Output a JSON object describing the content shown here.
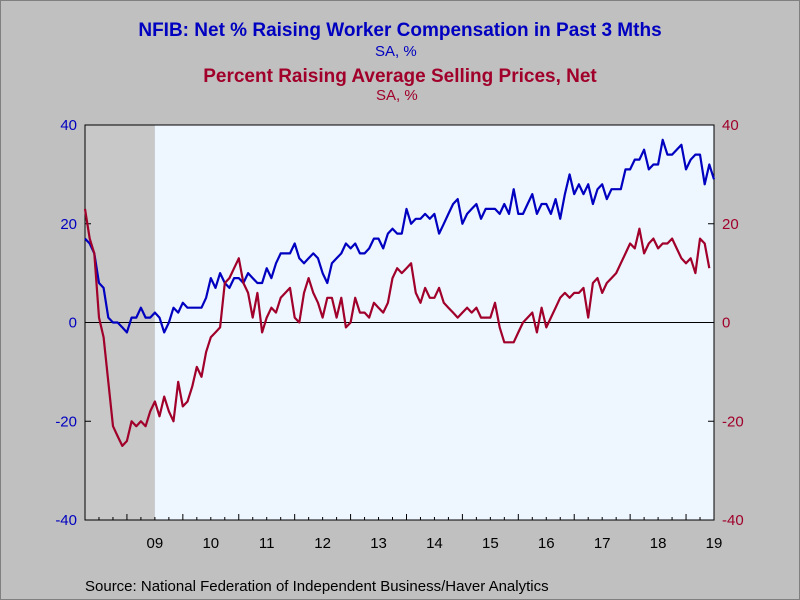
{
  "chart_data": {
    "type": "line",
    "title": "NFIB: Net % Raising Worker Compensation in Past 3 Mths",
    "subtitle": "SA, %",
    "title2": "Percent Raising Average Selling Prices, Net",
    "subtitle2": "SA, %",
    "source": "Source:  National Federation of Independent Business/Haver Analytics",
    "x_tick_labels": [
      "09",
      "10",
      "11",
      "12",
      "13",
      "14",
      "15",
      "16",
      "17",
      "18",
      "19"
    ],
    "y_left": {
      "range": [
        -40,
        40
      ],
      "ticks": [
        -40,
        -20,
        0,
        20,
        40
      ],
      "tick_labels": [
        "-40",
        "-20",
        "0",
        "20",
        "40"
      ]
    },
    "y_right": {
      "range": [
        -40,
        40
      ],
      "ticks": [
        -40,
        -20,
        0,
        20,
        40
      ],
      "tick_labels": [
        "-40",
        "-20",
        "0",
        "20",
        "40"
      ]
    },
    "x_range": [
      2008.25,
      2019.5
    ],
    "recession_shading": [
      2008.25,
      2009.5
    ],
    "grid": false,
    "colors": {
      "compensation": "#0000c0",
      "prices": "#a0002a",
      "plot_bg": "#eef6ff",
      "recession": "#c8c8c8",
      "left_axis_text": "#0000c0",
      "right_axis_text": "#a0002a"
    },
    "series": [
      {
        "key": "compensation",
        "start": 2008.25,
        "step": 0.083333,
        "values": [
          17,
          16,
          14,
          8,
          7,
          1,
          0,
          0,
          -1,
          -2,
          1,
          1,
          3,
          1,
          1,
          2,
          1,
          -2,
          0,
          3,
          2,
          4,
          3,
          3,
          3,
          3,
          5,
          9,
          7,
          10,
          8,
          7,
          9,
          9,
          8,
          10,
          9,
          8,
          8,
          11,
          9,
          12,
          14,
          14,
          14,
          16,
          13,
          12,
          13,
          14,
          13,
          10,
          8,
          12,
          13,
          14,
          16,
          15,
          16,
          14,
          14,
          15,
          17,
          17,
          15,
          18,
          19,
          18,
          18,
          23,
          20,
          21,
          21,
          22,
          21,
          22,
          18,
          20,
          22,
          24,
          25,
          20,
          22,
          23,
          24,
          21,
          23,
          23,
          23,
          22,
          24,
          22,
          27,
          22,
          22,
          24,
          26,
          22,
          24,
          24,
          22,
          25,
          21,
          26,
          30,
          26,
          28,
          26,
          28,
          24,
          27,
          28,
          25,
          27,
          27,
          27,
          31,
          31,
          33,
          33,
          35,
          31,
          32,
          32,
          37,
          34,
          34,
          35,
          36,
          31,
          33,
          34,
          34,
          28,
          32,
          29
        ]
      },
      {
        "key": "prices",
        "start": 2008.25,
        "step": 0.083333,
        "values": [
          23,
          17,
          14,
          1,
          -3,
          -12,
          -21,
          -23,
          -25,
          -24,
          -20,
          -21,
          -20,
          -21,
          -18,
          -16,
          -19,
          -15,
          -18,
          -20,
          -12,
          -17,
          -16,
          -13,
          -9,
          -11,
          -6,
          -3,
          -2,
          -1,
          8,
          9,
          11,
          13,
          8,
          6,
          1,
          6,
          -2,
          1,
          3,
          2,
          5,
          6,
          7,
          1,
          0,
          6,
          9,
          6,
          4,
          1,
          5,
          5,
          1,
          5,
          -1,
          0,
          5,
          2,
          2,
          1,
          4,
          3,
          2,
          4,
          9,
          11,
          10,
          11,
          12,
          6,
          4,
          7,
          5,
          5,
          7,
          4,
          3,
          2,
          1,
          2,
          3,
          2,
          3,
          1,
          1,
          1,
          4,
          -1,
          -4,
          -4,
          -4,
          -2,
          0,
          1,
          2,
          -2,
          3,
          -1,
          1,
          3,
          5,
          6,
          5,
          6,
          6,
          7,
          1,
          8,
          9,
          6,
          8,
          9,
          10,
          12,
          14,
          16,
          15,
          19,
          14,
          16,
          17,
          15,
          16,
          16,
          17,
          15,
          13,
          12,
          13,
          10,
          17,
          16,
          11
        ]
      }
    ]
  }
}
